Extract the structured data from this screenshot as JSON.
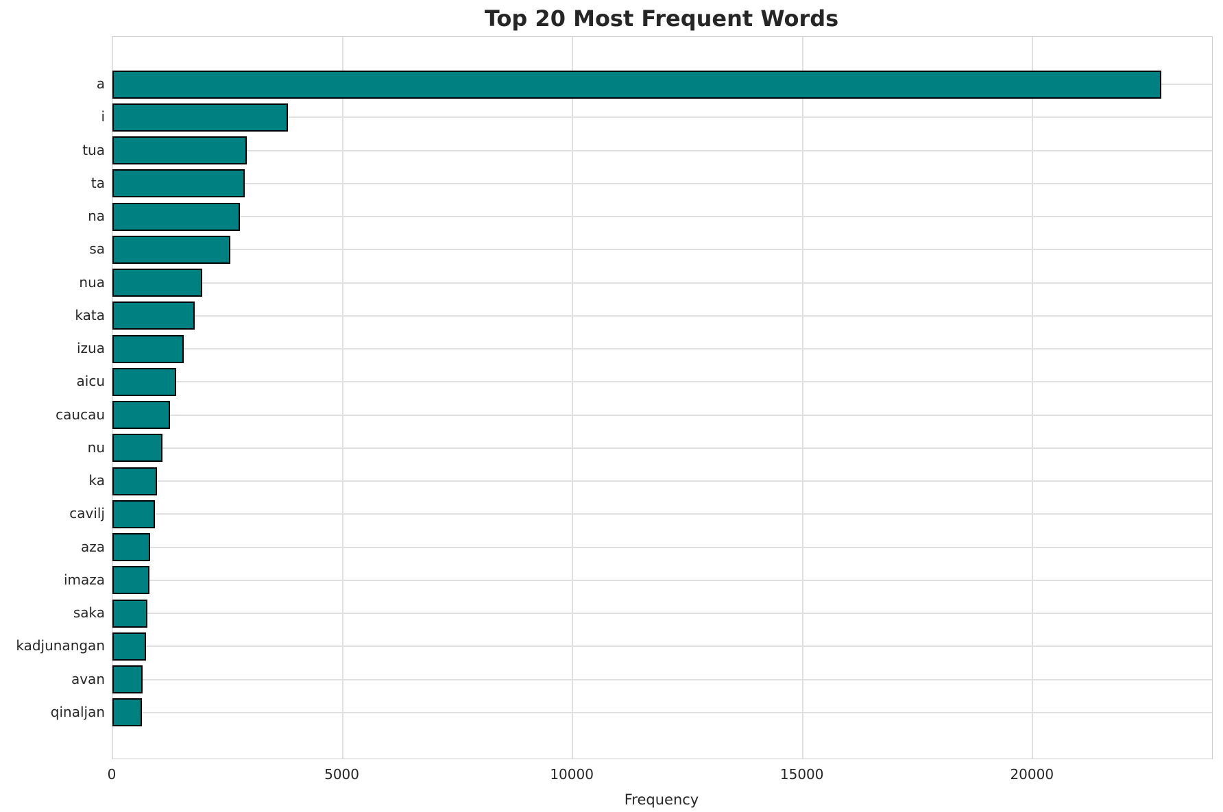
{
  "chart_data": {
    "type": "bar",
    "orientation": "horizontal",
    "title": "Top 20 Most Frequent Words",
    "xlabel": "Frequency",
    "ylabel": "",
    "categories": [
      "a",
      "i",
      "tua",
      "ta",
      "na",
      "sa",
      "nua",
      "kata",
      "izua",
      "aicu",
      "caucau",
      "nu",
      "ka",
      "cavilj",
      "aza",
      "imaza",
      "saka",
      "kadjunangan",
      "avan",
      "qinaljan"
    ],
    "values": [
      22800,
      3810,
      2920,
      2870,
      2770,
      2560,
      1950,
      1790,
      1550,
      1380,
      1250,
      1090,
      970,
      920,
      820,
      800,
      760,
      730,
      655,
      640
    ],
    "xticks": [
      0,
      5000,
      10000,
      15000,
      20000
    ],
    "xtick_labels": [
      "0",
      "5000",
      "10000",
      "15000",
      "20000"
    ],
    "xlim": [
      0,
      23900
    ],
    "grid": true,
    "legend_position": "none",
    "colors": {
      "bar_fill": "#008080",
      "bar_edge": "#000000",
      "grid": "#e0e0e0",
      "spine": "#cccccc",
      "text": "#262626",
      "background": "#ffffff"
    }
  }
}
